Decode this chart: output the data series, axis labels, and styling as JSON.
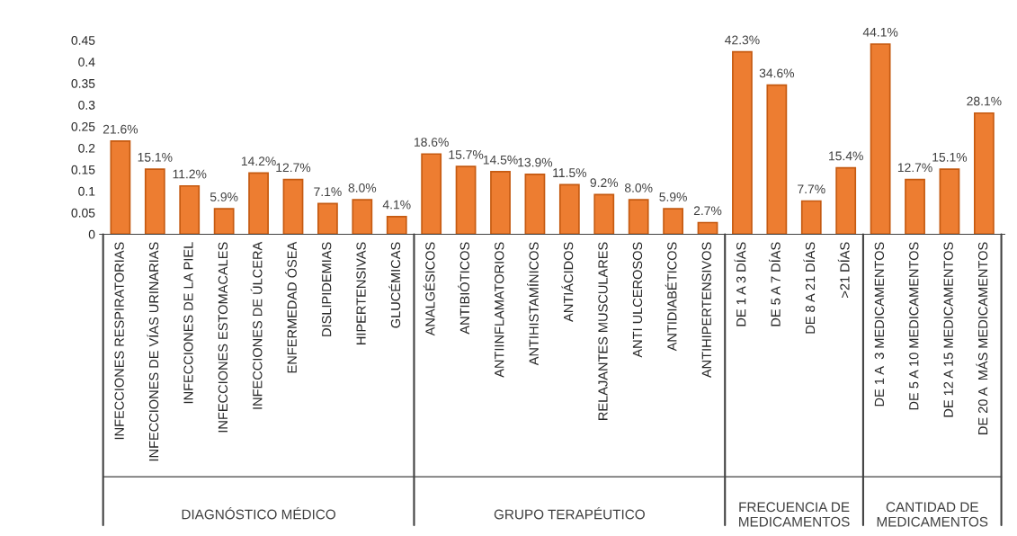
{
  "chart_data": {
    "type": "bar",
    "categories": [
      "INFECCIONES RESPIRATORIAS",
      "INFECCIONES DE VÍAS URINARIAS",
      "INFECCIONES DE LA PIEL",
      "INFECCIONES ESTOMACALES",
      "INFECCIONES DE ÚLCERA",
      "ENFERMEDAD ÓSEA",
      "DISLIPIDEMIAS",
      "HIPERTENSIVAS",
      "GLUCÉMICAS",
      "ANALGÉSICOS",
      "ANTIBIÓTICOS",
      "ANTIINFLAMATORIOS",
      "ANTIHISTAMÍNICOS",
      "ANTIÁCIDOS",
      "RELAJANTES MUSCULARES",
      "ANTI ULCEROSOS",
      "ANTIDIABÉTICOS",
      "ANTIHIPERTENSIVOS",
      "DE 1 A 3 DÍAS",
      "DE 5 A 7 DÍAS",
      "DE 8 A 21 DÍAS",
      ">21 DÍAS",
      "DE 1 A  3 MEDICAMENTOS",
      "DE 5 A 10 MEDICAMENTOS",
      "DE 12 A 15 MEDICAMENTOS",
      "DE 20 A  MÁS MEDICAMENTOS"
    ],
    "values": [
      0.216,
      0.151,
      0.112,
      0.059,
      0.142,
      0.127,
      0.071,
      0.08,
      0.041,
      0.186,
      0.157,
      0.145,
      0.139,
      0.115,
      0.092,
      0.08,
      0.059,
      0.027,
      0.423,
      0.346,
      0.077,
      0.154,
      0.441,
      0.127,
      0.151,
      0.281
    ],
    "value_labels": [
      "21.6%",
      "15.1%",
      "11.2%",
      "5.9%",
      "14.2%",
      "12.7%",
      "7.1%",
      "8.0%",
      "4.1%",
      "18.6%",
      "15.7%",
      "14.5%",
      "13.9%",
      "11.5%",
      "9.2%",
      "8.0%",
      "5.9%",
      "2.7%",
      "42.3%",
      "34.6%",
      "7.7%",
      "15.4%",
      "44.1%",
      "12.7%",
      "15.1%",
      "28.1%"
    ],
    "color": "#ed7d31",
    "ylim": [
      0,
      0.45
    ],
    "yticks": [
      0,
      0.05,
      0.1,
      0.15,
      0.2,
      0.25,
      0.3,
      0.35,
      0.4,
      0.45
    ],
    "grid": false,
    "annotations": [
      "DIAGNÓSTICO MÉDICO",
      "GRUPO TERAPÉUTICO",
      "FRECUENCIA DE\nMEDICAMENTOS",
      "CANTIDAD DE\nMEDICAMENTOS"
    ]
  }
}
